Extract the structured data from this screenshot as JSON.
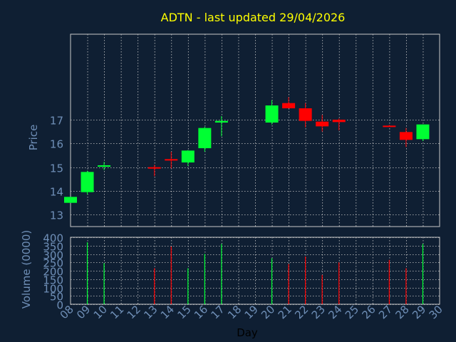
{
  "colors": {
    "background": "#0f1f33",
    "plot_border": "#c8c8c8",
    "grid": "#c8c8c8",
    "title": "#ffff00",
    "axis_text": "#6f8fb7",
    "up": "#00ff33",
    "down": "#ff0000"
  },
  "chart_data": [
    {
      "type": "candlestick",
      "title": "ADTN - last updated 29/04/2026",
      "ylabel": "Price",
      "yticks": [
        13,
        14,
        15,
        16,
        17
      ],
      "ylim": [
        12.5,
        20.6
      ],
      "xlim": [
        8,
        30
      ],
      "grid": true,
      "candles": [
        {
          "day": 8,
          "open": 13.5,
          "high": 13.75,
          "low": 13.5,
          "close": 13.75
        },
        {
          "day": 9,
          "open": 13.95,
          "high": 14.85,
          "low": 13.85,
          "close": 14.8
        },
        {
          "day": 10,
          "open": 15.02,
          "high": 15.22,
          "low": 14.88,
          "close": 15.08
        },
        {
          "day": 13,
          "open": 15.0,
          "high": 15.1,
          "low": 14.62,
          "close": 14.96
        },
        {
          "day": 14,
          "open": 15.34,
          "high": 15.65,
          "low": 14.95,
          "close": 15.3
        },
        {
          "day": 15,
          "open": 15.2,
          "high": 15.72,
          "low": 15.05,
          "close": 15.7
        },
        {
          "day": 16,
          "open": 15.8,
          "high": 16.7,
          "low": 15.65,
          "close": 16.65
        },
        {
          "day": 17,
          "open": 16.88,
          "high": 17.15,
          "low": 16.3,
          "close": 16.95
        },
        {
          "day": 20,
          "open": 16.88,
          "high": 17.82,
          "low": 16.8,
          "close": 17.6
        },
        {
          "day": 21,
          "open": 17.7,
          "high": 17.95,
          "low": 17.48,
          "close": 17.48
        },
        {
          "day": 22,
          "open": 17.48,
          "high": 17.7,
          "low": 16.68,
          "close": 16.95
        },
        {
          "day": 23,
          "open": 16.92,
          "high": 17.2,
          "low": 16.5,
          "close": 16.72
        },
        {
          "day": 24,
          "open": 17.0,
          "high": 17.05,
          "low": 16.55,
          "close": 16.9
        },
        {
          "day": 27,
          "open": 16.75,
          "high": 16.78,
          "low": 16.72,
          "close": 16.72
        },
        {
          "day": 28,
          "open": 16.48,
          "high": 16.65,
          "low": 15.85,
          "close": 16.15
        },
        {
          "day": 29,
          "open": 16.18,
          "high": 16.8,
          "low": 16.1,
          "close": 16.8
        }
      ]
    },
    {
      "type": "bar",
      "xlabel": "Day",
      "ylabel": "Volume (0000)",
      "yticks": [
        0,
        50,
        100,
        150,
        200,
        250,
        300,
        350,
        400
      ],
      "ylim": [
        0,
        400
      ],
      "xlim": [
        8,
        30
      ],
      "xticks": [
        "08",
        "09",
        "10",
        "11",
        "12",
        "13",
        "14",
        "15",
        "16",
        "17",
        "18",
        "19",
        "20",
        "21",
        "22",
        "23",
        "24",
        "25",
        "26",
        "27",
        "28",
        "29",
        "30"
      ],
      "grid": true,
      "bars": [
        {
          "day": 9,
          "value": 370,
          "dir": "up"
        },
        {
          "day": 10,
          "value": 245,
          "dir": "up"
        },
        {
          "day": 13,
          "value": 215,
          "dir": "down"
        },
        {
          "day": 14,
          "value": 345,
          "dir": "down"
        },
        {
          "day": 15,
          "value": 215,
          "dir": "up"
        },
        {
          "day": 16,
          "value": 300,
          "dir": "up"
        },
        {
          "day": 17,
          "value": 360,
          "dir": "up"
        },
        {
          "day": 20,
          "value": 275,
          "dir": "up"
        },
        {
          "day": 21,
          "value": 240,
          "dir": "down"
        },
        {
          "day": 22,
          "value": 285,
          "dir": "down"
        },
        {
          "day": 23,
          "value": 175,
          "dir": "down"
        },
        {
          "day": 24,
          "value": 250,
          "dir": "down"
        },
        {
          "day": 27,
          "value": 265,
          "dir": "down"
        },
        {
          "day": 28,
          "value": 215,
          "dir": "down"
        },
        {
          "day": 29,
          "value": 360,
          "dir": "up"
        }
      ]
    }
  ]
}
